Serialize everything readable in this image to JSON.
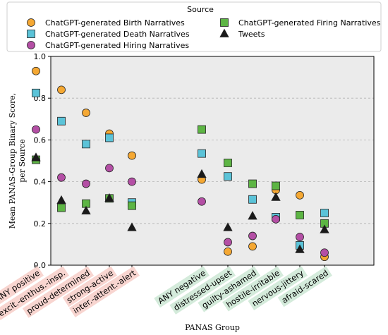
{
  "chart_data": {
    "type": "scatter",
    "xlabel": "PANAS Group",
    "ylabel": "Mean PANAS-Group Binary Score,\nper Source",
    "ylim": [
      0.0,
      1.0
    ],
    "yticks": [
      "0.0",
      "0.2",
      "0.4",
      "0.6",
      "0.8",
      "1.0"
    ],
    "grid": "horizontal-dashed",
    "categories": [
      "ANY positive",
      "excit.-enthus.-insp.",
      "proud-determined",
      "strong-active",
      "inter.-attent.-alert",
      "ANY negative",
      "distressed-upset",
      "guilty-ashamed",
      "hostile-irritable",
      "nervous-jittery",
      "afraid-scared"
    ],
    "category_group": [
      "positive",
      "positive",
      "positive",
      "positive",
      "positive",
      "negative",
      "negative",
      "negative",
      "negative",
      "negative",
      "negative"
    ],
    "legend": {
      "title": "Source",
      "placement": "top",
      "entries": [
        "ChatGPT-generated Birth Narratives",
        "ChatGPT-generated Firing Narratives",
        "ChatGPT-generated Death Narratives",
        "Tweets",
        "ChatGPT-generated Hiring Narratives"
      ]
    },
    "series": [
      {
        "name": "ChatGPT-generated Birth Narratives",
        "marker": "circle",
        "color": "#f5a833",
        "values": [
          0.93,
          0.84,
          0.73,
          0.63,
          0.525,
          0.41,
          0.065,
          0.09,
          0.36,
          0.335,
          0.04
        ]
      },
      {
        "name": "ChatGPT-generated Death Narratives",
        "marker": "square",
        "color": "#5bc3d8",
        "values": [
          0.825,
          0.69,
          0.58,
          0.61,
          0.3,
          0.535,
          0.425,
          0.315,
          0.23,
          0.095,
          0.25
        ]
      },
      {
        "name": "ChatGPT-generated Hiring Narratives",
        "marker": "circle",
        "color": "#b44fa5",
        "values": [
          0.65,
          0.42,
          0.39,
          0.465,
          0.4,
          0.305,
          0.11,
          0.14,
          0.22,
          0.135,
          0.06
        ]
      },
      {
        "name": "ChatGPT-generated Firing Narratives",
        "marker": "square",
        "color": "#5db544",
        "values": [
          0.505,
          0.275,
          0.295,
          0.32,
          0.285,
          0.65,
          0.49,
          0.39,
          0.38,
          0.24,
          0.2
        ]
      },
      {
        "name": "Tweets",
        "marker": "triangle",
        "color": "#1a1a1a",
        "values": [
          0.515,
          0.31,
          0.26,
          0.32,
          0.18,
          0.435,
          0.18,
          0.235,
          0.325,
          0.075,
          0.17
        ]
      }
    ],
    "colors": {
      "plot_background": "#ebebeb",
      "positive_label_bg": "#f8d5d0",
      "negative_label_bg": "#d4ebdb",
      "grid": "#b4b4b4"
    }
  }
}
